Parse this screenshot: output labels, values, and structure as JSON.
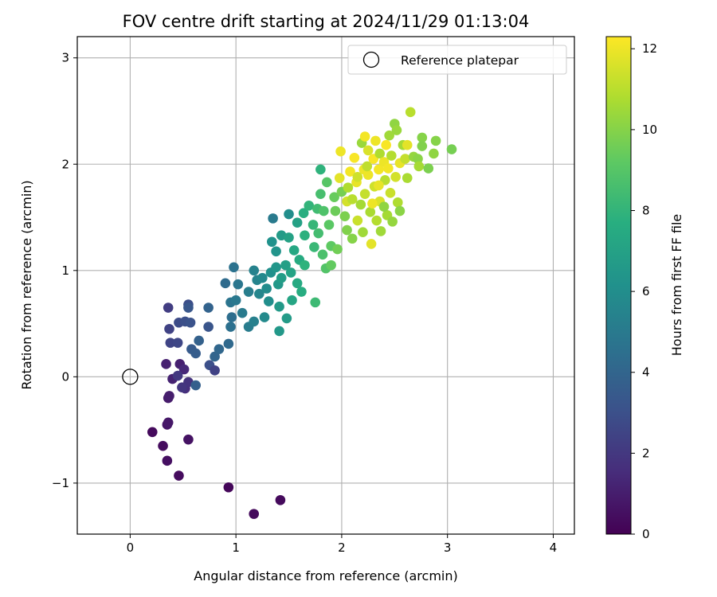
{
  "chart_data": {
    "type": "scatter",
    "title": "FOV centre drift starting at 2024/11/29 01:13:04",
    "xlabel": "Angular distance from reference (arcmin)",
    "ylabel": "Rotation from reference (arcmin)",
    "xlim": [
      -0.5,
      4.2
    ],
    "ylim": [
      -1.48,
      3.2
    ],
    "xticks": [
      0,
      1,
      2,
      3,
      4
    ],
    "yticks": [
      -1,
      0,
      1,
      2,
      3
    ],
    "grid": true,
    "legend": {
      "position": "top-right",
      "entries": [
        "Reference platepar"
      ]
    },
    "colorbar": {
      "label": "Hours from first FF file",
      "min": 0,
      "max": 12.3,
      "ticks": [
        0,
        2,
        4,
        6,
        8,
        10,
        12
      ],
      "colormap": "viridis"
    },
    "reference_point": {
      "x": 0,
      "y": 0,
      "label": "Reference platepar"
    },
    "points": [
      [
        0.21,
        -0.52,
        0.3
      ],
      [
        0.31,
        -0.65,
        0.4
      ],
      [
        0.35,
        -0.79,
        0.5
      ],
      [
        0.46,
        -0.93,
        0.4
      ],
      [
        0.55,
        -0.59,
        0.6
      ],
      [
        0.93,
        -1.04,
        0.2
      ],
      [
        1.17,
        -1.29,
        0.3
      ],
      [
        1.42,
        -1.16,
        0.3
      ],
      [
        0.35,
        -0.45,
        0.7
      ],
      [
        0.36,
        -0.43,
        0.8
      ],
      [
        0.36,
        -0.2,
        0.9
      ],
      [
        0.37,
        -0.18,
        1.0
      ],
      [
        0.34,
        0.12,
        1.1
      ],
      [
        0.4,
        -0.02,
        1.2
      ],
      [
        0.47,
        0.12,
        1.1
      ],
      [
        0.51,
        0.07,
        1.4
      ],
      [
        0.52,
        -0.11,
        1.6
      ],
      [
        0.55,
        -0.05,
        1.8
      ],
      [
        0.49,
        -0.1,
        1.9
      ],
      [
        0.45,
        0.01,
        2.0
      ],
      [
        0.36,
        0.65,
        2.2
      ],
      [
        0.37,
        0.45,
        2.4
      ],
      [
        0.38,
        0.32,
        2.5
      ],
      [
        0.45,
        0.32,
        2.6
      ],
      [
        0.46,
        0.51,
        2.8
      ],
      [
        0.52,
        0.52,
        3.0
      ],
      [
        0.55,
        0.68,
        2.9
      ],
      [
        0.57,
        0.51,
        3.1
      ],
      [
        0.55,
        0.65,
        3.3
      ],
      [
        0.58,
        0.26,
        3.5
      ],
      [
        0.62,
        0.22,
        3.6
      ],
      [
        0.62,
        -0.08,
        3.7
      ],
      [
        0.65,
        0.34,
        3.8
      ],
      [
        0.74,
        0.47,
        3.2
      ],
      [
        0.74,
        0.65,
        3.9
      ],
      [
        0.75,
        0.11,
        3.0
      ],
      [
        0.8,
        0.06,
        2.4
      ],
      [
        0.8,
        0.19,
        4.0
      ],
      [
        0.84,
        0.26,
        4.1
      ],
      [
        0.93,
        0.31,
        4.2
      ],
      [
        0.9,
        0.88,
        4.3
      ],
      [
        0.96,
        0.56,
        4.4
      ],
      [
        0.95,
        0.47,
        4.5
      ],
      [
        0.98,
        1.03,
        4.6
      ],
      [
        0.95,
        0.7,
        4.7
      ],
      [
        1.02,
        0.87,
        4.8
      ],
      [
        1.0,
        0.72,
        4.9
      ],
      [
        1.06,
        0.6,
        5.0
      ],
      [
        1.12,
        0.47,
        5.1
      ],
      [
        1.12,
        0.8,
        5.2
      ],
      [
        1.17,
        0.52,
        5.3
      ],
      [
        1.17,
        1.0,
        5.4
      ],
      [
        1.2,
        0.91,
        5.5
      ],
      [
        1.22,
        0.78,
        5.6
      ],
      [
        1.25,
        0.93,
        5.7
      ],
      [
        1.27,
        0.56,
        5.8
      ],
      [
        1.29,
        0.83,
        5.9
      ],
      [
        1.31,
        0.71,
        6.0
      ],
      [
        1.33,
        0.98,
        6.1
      ],
      [
        1.34,
        1.27,
        6.2
      ],
      [
        1.35,
        1.49,
        5.0
      ],
      [
        1.38,
        1.18,
        6.3
      ],
      [
        1.38,
        1.03,
        6.4
      ],
      [
        1.4,
        0.87,
        6.5
      ],
      [
        1.41,
        0.66,
        6.6
      ],
      [
        1.41,
        0.43,
        6.5
      ],
      [
        1.43,
        1.33,
        6.7
      ],
      [
        1.43,
        0.93,
        6.8
      ],
      [
        1.47,
        1.05,
        6.9
      ],
      [
        1.48,
        0.55,
        6.7
      ],
      [
        1.5,
        1.53,
        6.0
      ],
      [
        1.5,
        1.31,
        7.0
      ],
      [
        1.52,
        0.98,
        7.1
      ],
      [
        1.53,
        0.72,
        7.2
      ],
      [
        1.55,
        1.19,
        7.3
      ],
      [
        1.58,
        1.45,
        7.0
      ],
      [
        1.58,
        0.88,
        7.4
      ],
      [
        1.6,
        1.1,
        7.5
      ],
      [
        1.62,
        0.8,
        7.6
      ],
      [
        1.64,
        1.54,
        7.7
      ],
      [
        1.65,
        1.33,
        7.8
      ],
      [
        1.65,
        1.05,
        7.9
      ],
      [
        1.69,
        1.61,
        8.0
      ],
      [
        1.73,
        1.43,
        8.1
      ],
      [
        1.74,
        1.22,
        8.2
      ],
      [
        1.75,
        0.7,
        8.3
      ],
      [
        1.77,
        1.58,
        8.4
      ],
      [
        1.78,
        1.35,
        8.5
      ],
      [
        1.8,
        1.95,
        7.9
      ],
      [
        1.8,
        1.72,
        8.6
      ],
      [
        1.82,
        1.15,
        8.7
      ],
      [
        1.83,
        1.56,
        8.8
      ],
      [
        1.85,
        1.02,
        8.9
      ],
      [
        1.86,
        1.83,
        9.0
      ],
      [
        1.88,
        1.43,
        9.1
      ],
      [
        1.9,
        1.23,
        9.2
      ],
      [
        1.9,
        1.05,
        9.3
      ],
      [
        1.93,
        1.69,
        9.4
      ],
      [
        1.94,
        1.56,
        9.5
      ],
      [
        1.96,
        1.2,
        9.6
      ],
      [
        1.98,
        1.87,
        11.8
      ],
      [
        1.99,
        2.12,
        12.0
      ],
      [
        2.0,
        1.74,
        9.7
      ],
      [
        2.03,
        1.51,
        9.8
      ],
      [
        2.05,
        1.65,
        11.5
      ],
      [
        2.05,
        1.38,
        9.9
      ],
      [
        2.08,
        1.93,
        12.1
      ],
      [
        2.1,
        1.67,
        11.0
      ],
      [
        2.1,
        1.3,
        10.0
      ],
      [
        2.12,
        2.06,
        12.2
      ],
      [
        2.14,
        1.83,
        11.9
      ],
      [
        2.15,
        1.47,
        11.3
      ],
      [
        2.18,
        1.62,
        10.6
      ],
      [
        2.19,
        2.2,
        10.4
      ],
      [
        2.2,
        1.36,
        10.5
      ],
      [
        2.21,
        1.95,
        12.0
      ],
      [
        2.22,
        2.26,
        12.1
      ],
      [
        2.22,
        1.72,
        11.2
      ],
      [
        2.25,
        2.13,
        11.6
      ],
      [
        2.25,
        1.9,
        12.0
      ],
      [
        2.27,
        1.55,
        10.7
      ],
      [
        2.28,
        1.25,
        11.8
      ],
      [
        2.3,
        2.05,
        12.2
      ],
      [
        2.31,
        1.79,
        11.4
      ],
      [
        2.32,
        2.22,
        12.0
      ],
      [
        2.33,
        1.47,
        10.9
      ],
      [
        2.35,
        1.95,
        12.1
      ],
      [
        2.36,
        2.1,
        10.8
      ],
      [
        2.36,
        1.65,
        11.6
      ],
      [
        2.37,
        1.37,
        10.5
      ],
      [
        2.4,
        2.02,
        12.0
      ],
      [
        2.41,
        1.85,
        11.0
      ],
      [
        2.42,
        2.18,
        12.2
      ],
      [
        2.43,
        1.52,
        10.6
      ],
      [
        2.44,
        1.96,
        12.1
      ],
      [
        2.45,
        2.27,
        10.5
      ],
      [
        2.46,
        1.73,
        11.3
      ],
      [
        2.47,
        2.08,
        10.9
      ],
      [
        2.48,
        1.46,
        10.3
      ],
      [
        2.5,
        2.38,
        10.2
      ],
      [
        2.51,
        1.88,
        11.5
      ],
      [
        2.52,
        2.32,
        10.4
      ],
      [
        2.53,
        1.64,
        10.8
      ],
      [
        2.55,
        2.01,
        11.9
      ],
      [
        2.55,
        1.56,
        10.1
      ],
      [
        2.58,
        2.18,
        10.6
      ],
      [
        2.6,
        2.05,
        11.2
      ],
      [
        2.62,
        1.87,
        10.7
      ],
      [
        2.62,
        2.18,
        11.8
      ],
      [
        2.65,
        2.49,
        11.0
      ],
      [
        2.68,
        2.07,
        10.3
      ],
      [
        2.72,
        2.05,
        10.1
      ],
      [
        2.73,
        1.98,
        10.6
      ],
      [
        2.76,
        2.25,
        10.0
      ],
      [
        2.76,
        2.17,
        9.9
      ],
      [
        2.82,
        1.96,
        9.8
      ],
      [
        2.87,
        2.1,
        10.2
      ],
      [
        2.89,
        2.22,
        10.0
      ],
      [
        3.04,
        2.14,
        9.7
      ],
      [
        2.24,
        1.98,
        11.1
      ],
      [
        2.35,
        1.8,
        11.9
      ],
      [
        2.15,
        1.88,
        11.4
      ],
      [
        2.4,
        1.6,
        10.2
      ],
      [
        2.06,
        1.78,
        10.8
      ],
      [
        2.29,
        1.63,
        12.0
      ]
    ]
  }
}
